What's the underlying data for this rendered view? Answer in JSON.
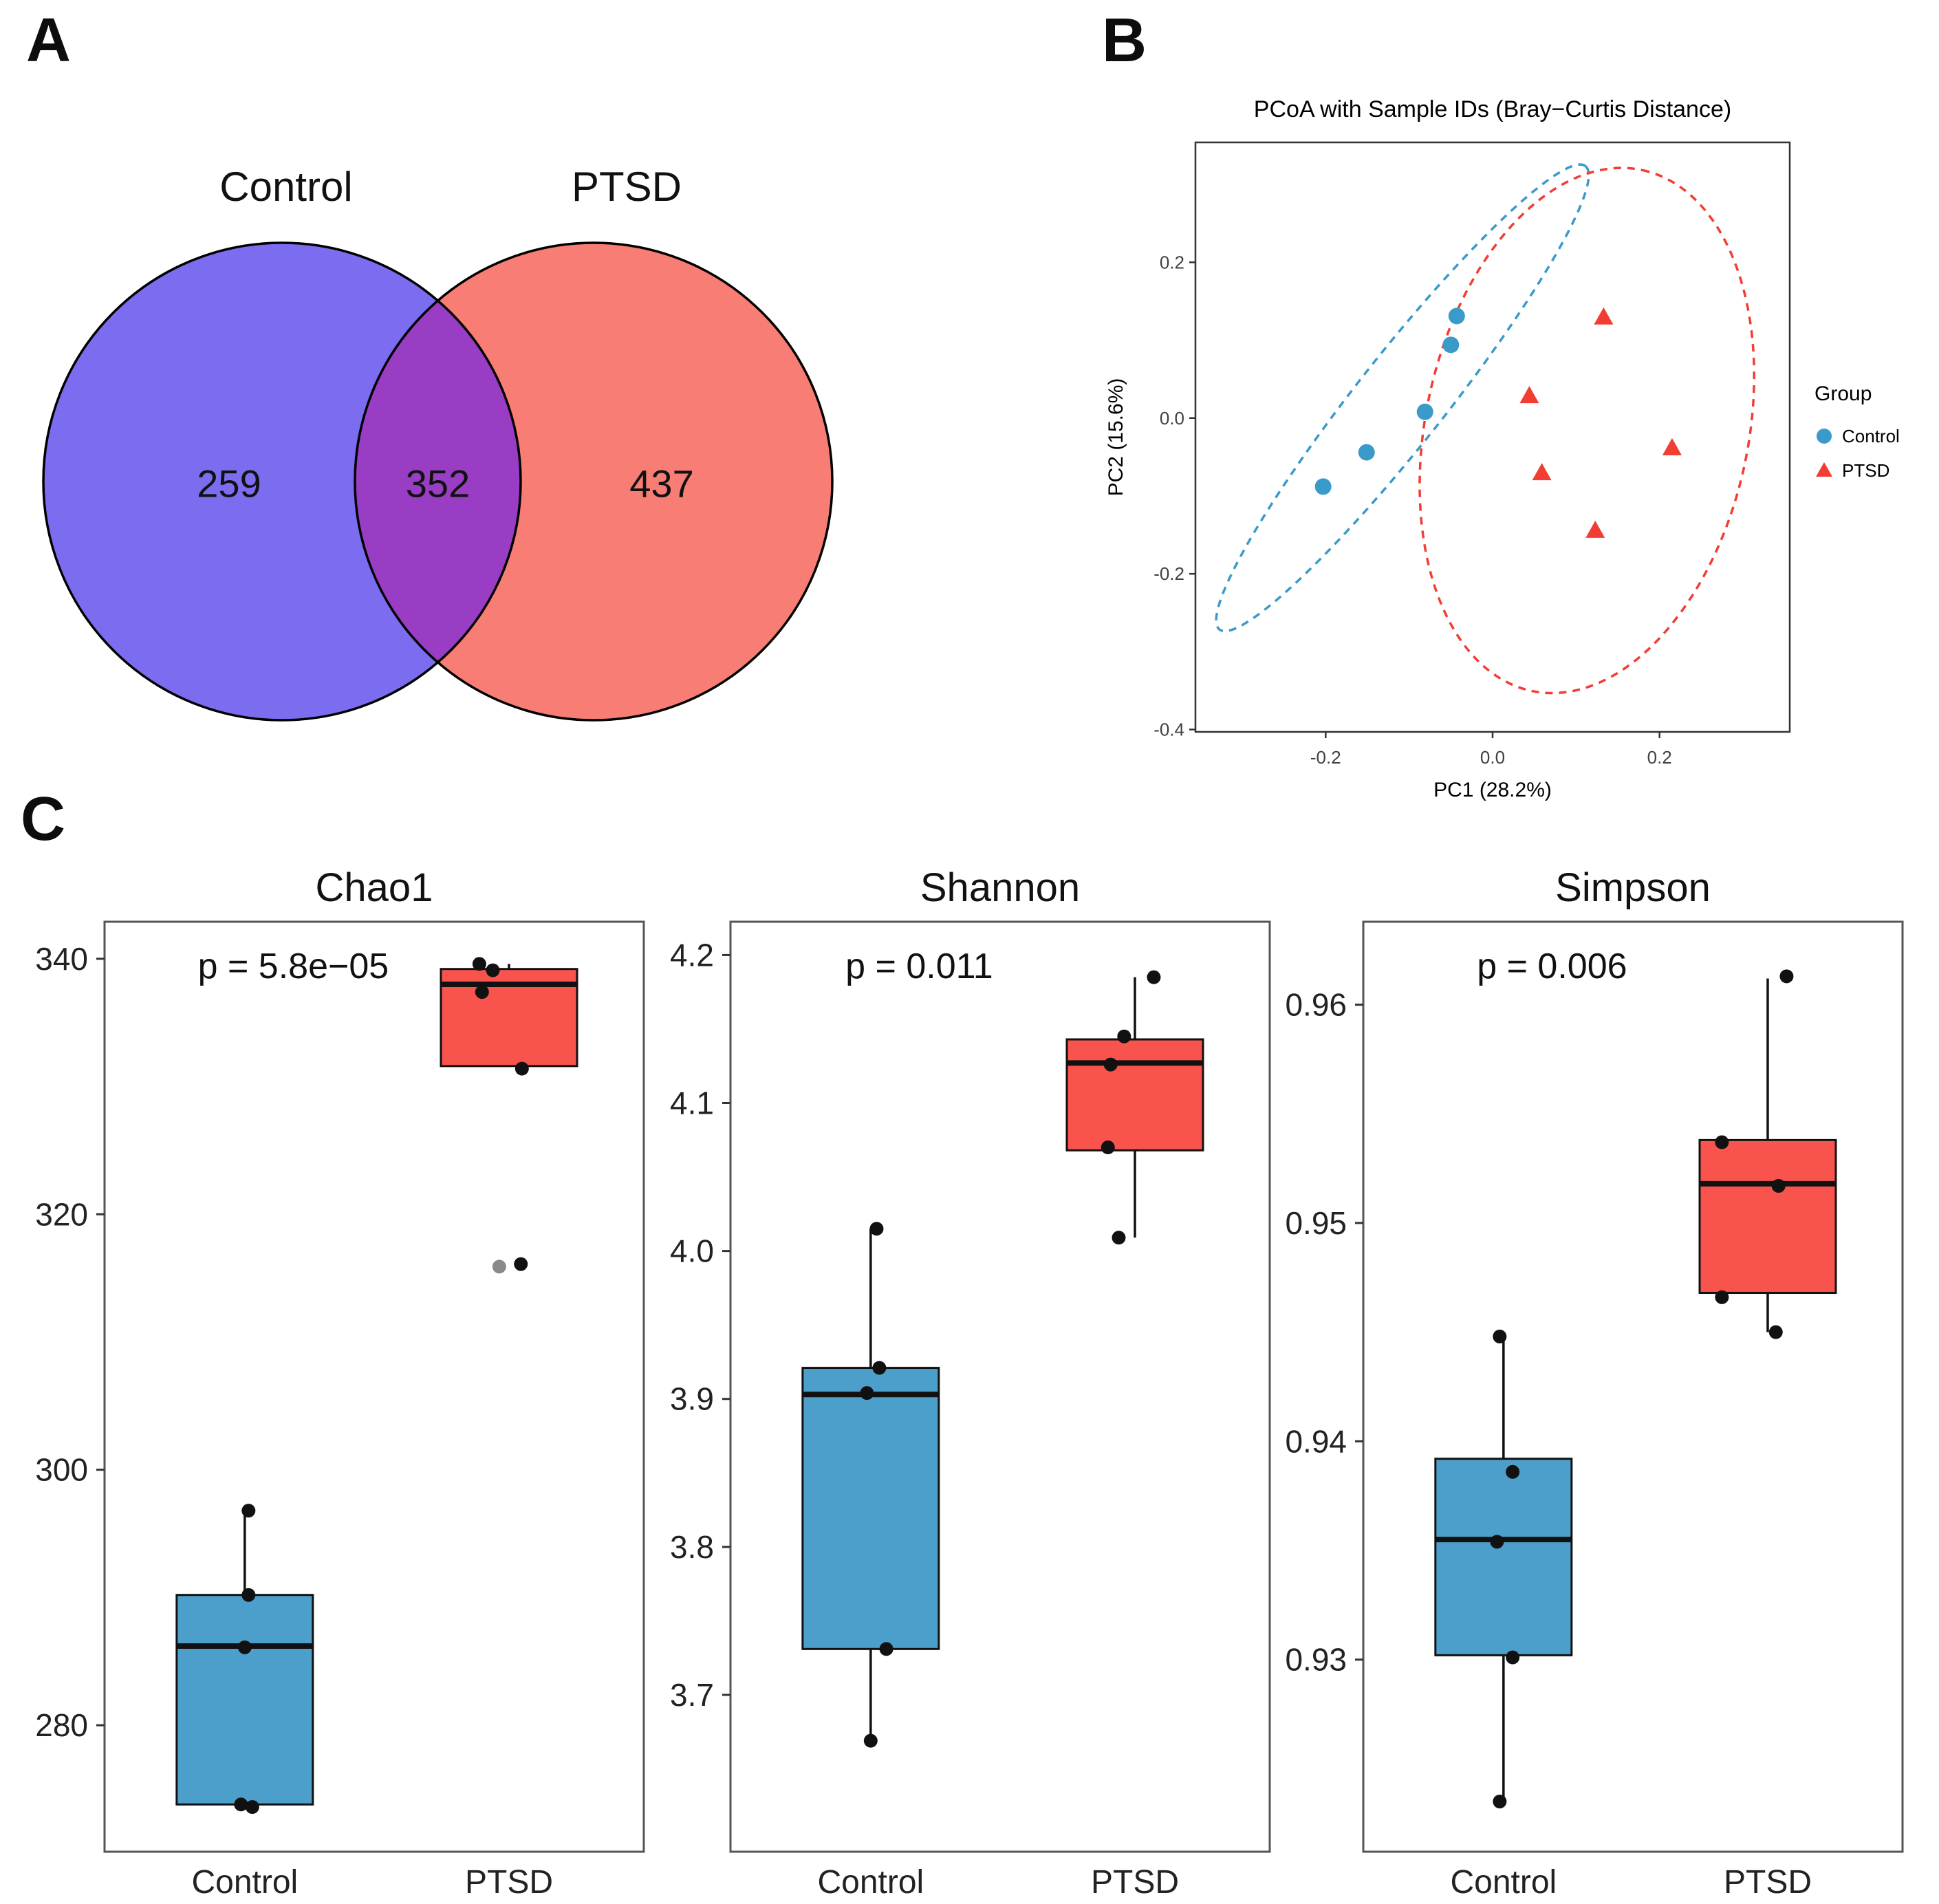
{
  "labels": {
    "panel_a": "A",
    "panel_b": "B",
    "panel_c": "C"
  },
  "chart_data": [
    {
      "type": "venn",
      "sets": [
        {
          "label": "Control",
          "value": 259,
          "color": "#7c6cf0"
        },
        {
          "label": "PTSD",
          "value": 437,
          "color": "#f87d74"
        }
      ],
      "overlap": {
        "value": 352,
        "color": "#993dc4"
      },
      "outline_color": "#000000"
    },
    {
      "type": "scatter",
      "title": "PCoA with Sample IDs (Bray−Curtis Distance)",
      "xlabel": "PC1 (28.2%)",
      "ylabel": "PC2 (15.6%)",
      "xlim": [
        -0.356,
        0.356
      ],
      "ylim": [
        -0.403,
        0.354
      ],
      "xticks": [
        -0.2,
        0,
        0.2
      ],
      "xtick_labels": [
        "-0.2",
        "0.0",
        "0.2"
      ],
      "yticks": [
        -0.4,
        -0.2,
        0,
        0.2
      ],
      "ytick_labels": [
        "-0.4",
        "-0.2",
        "0.0",
        "0.2"
      ],
      "legend": {
        "title": "Group"
      },
      "series": [
        {
          "name": "Control",
          "shape": "circle",
          "color": "#3a9ac9",
          "points": [
            [
              -0.043,
              0.131
            ],
            [
              -0.05,
              0.094
            ],
            [
              -0.081,
              0.008
            ],
            [
              -0.151,
              -0.044
            ],
            [
              -0.203,
              -0.088
            ]
          ],
          "ellipse": {
            "cx": -0.108,
            "cy": 0.026,
            "r_major": 0.366,
            "r_minor": 0.055,
            "angle_deg": 51.7
          }
        },
        {
          "name": "PTSD",
          "shape": "triangle",
          "color": "#f23d33",
          "points": [
            [
              0.133,
              0.129
            ],
            [
              0.044,
              0.028
            ],
            [
              0.059,
              -0.071
            ],
            [
              0.215,
              -0.039
            ],
            [
              0.123,
              -0.145
            ]
          ],
          "ellipse": {
            "cx": 0.113,
            "cy": -0.016,
            "r_major": 0.33,
            "r_minor": 0.2,
            "angle_deg": 78
          }
        }
      ]
    },
    {
      "type": "boxplot",
      "x_categories": [
        "Control",
        "PTSD"
      ],
      "group_colors": {
        "Control": "#4d9fcb",
        "PTSD": "#f8544d"
      },
      "panels": [
        {
          "title": "Chao1",
          "p_label": "p = 5.8e−05",
          "ylim": [
            270.1,
            342.9
          ],
          "yticks": [
            280,
            300,
            320,
            340
          ],
          "ytick_labels": [
            "280",
            "300",
            "320",
            "340"
          ],
          "groups": [
            {
              "name": "Control",
              "color": "#4d9fcb",
              "whisker_low": 273.8,
              "q1": 273.8,
              "median": 286.2,
              "q3": 290.2,
              "whisker_high": 296.8,
              "points": [
                {
                  "v": 296.8,
                  "dx": 0.007
                },
                {
                  "v": 290.2,
                  "dx": 0.007
                },
                {
                  "v": 286.1,
                  "dx": 0.0
                },
                {
                  "v": 273.8,
                  "dx": -0.007
                },
                {
                  "v": 273.6,
                  "dx": 0.014
                }
              ]
            },
            {
              "name": "PTSD",
              "color": "#f8544d",
              "whisker_low": 331.6,
              "q1": 331.6,
              "median": 338.0,
              "q3": 339.2,
              "whisker_high": 339.6,
              "points": [
                {
                  "v": 339.6,
                  "dx": -0.055
                },
                {
                  "v": 339.1,
                  "dx": -0.03
                },
                {
                  "v": 337.4,
                  "dx": -0.05
                },
                {
                  "v": 331.4,
                  "dx": 0.024
                },
                {
                  "v": 316.1,
                  "dx": 0.022
                }
              ],
              "gray_points": [
                {
                  "v": 315.9,
                  "dx": -0.018
                }
              ]
            }
          ]
        },
        {
          "title": "Shannon",
          "p_label": "p = 0.011",
          "ylim": [
            3.594,
            4.2225
          ],
          "yticks": [
            3.7,
            3.8,
            3.9,
            4.0,
            4.1,
            4.2
          ],
          "ytick_labels": [
            "3.7",
            "3.8",
            "3.9",
            "4.0",
            "4.1",
            "4.2"
          ],
          "groups": [
            {
              "name": "Control",
              "color": "#4d9fcb",
              "whisker_low": 3.669,
              "q1": 3.731,
              "median": 3.903,
              "q3": 3.921,
              "whisker_high": 4.015,
              "points": [
                {
                  "v": 4.015,
                  "dx": 0.011
                },
                {
                  "v": 3.921,
                  "dx": 0.016
                },
                {
                  "v": 3.904,
                  "dx": -0.007
                },
                {
                  "v": 3.731,
                  "dx": 0.029
                },
                {
                  "v": 3.669,
                  "dx": 0.0
                }
              ]
            },
            {
              "name": "PTSD",
              "color": "#f8544d",
              "whisker_low": 4.009,
              "q1": 4.068,
              "median": 4.127,
              "q3": 4.143,
              "whisker_high": 4.185,
              "points": [
                {
                  "v": 4.185,
                  "dx": 0.035
                },
                {
                  "v": 4.145,
                  "dx": -0.02
                },
                {
                  "v": 4.126,
                  "dx": -0.045
                },
                {
                  "v": 4.07,
                  "dx": -0.05
                },
                {
                  "v": 4.009,
                  "dx": -0.03
                }
              ]
            }
          ]
        },
        {
          "title": "Simpson",
          "p_label": "p = 0.006",
          "ylim": [
            0.9212,
            0.9638
          ],
          "yticks": [
            0.93,
            0.94,
            0.95,
            0.96
          ],
          "ytick_labels": [
            "0.93",
            "0.94",
            "0.95",
            "0.96"
          ],
          "groups": [
            {
              "name": "Control",
              "color": "#4d9fcb",
              "whisker_low": 0.9235,
              "q1": 0.9302,
              "median": 0.9355,
              "q3": 0.9392,
              "whisker_high": 0.9448,
              "points": [
                {
                  "v": 0.9448,
                  "dx": -0.007
                },
                {
                  "v": 0.9386,
                  "dx": 0.017
                },
                {
                  "v": 0.9354,
                  "dx": -0.012
                },
                {
                  "v": 0.9301,
                  "dx": 0.017
                },
                {
                  "v": 0.9235,
                  "dx": -0.007
                }
              ]
            },
            {
              "name": "PTSD",
              "color": "#f8544d",
              "whisker_low": 0.945,
              "q1": 0.9468,
              "median": 0.9518,
              "q3": 0.9538,
              "whisker_high": 0.9612,
              "points": [
                {
                  "v": 0.9613,
                  "dx": 0.035
                },
                {
                  "v": 0.9537,
                  "dx": -0.085
                },
                {
                  "v": 0.9517,
                  "dx": 0.02
                },
                {
                  "v": 0.9466,
                  "dx": -0.085
                },
                {
                  "v": 0.945,
                  "dx": 0.015
                }
              ]
            }
          ]
        }
      ]
    }
  ]
}
